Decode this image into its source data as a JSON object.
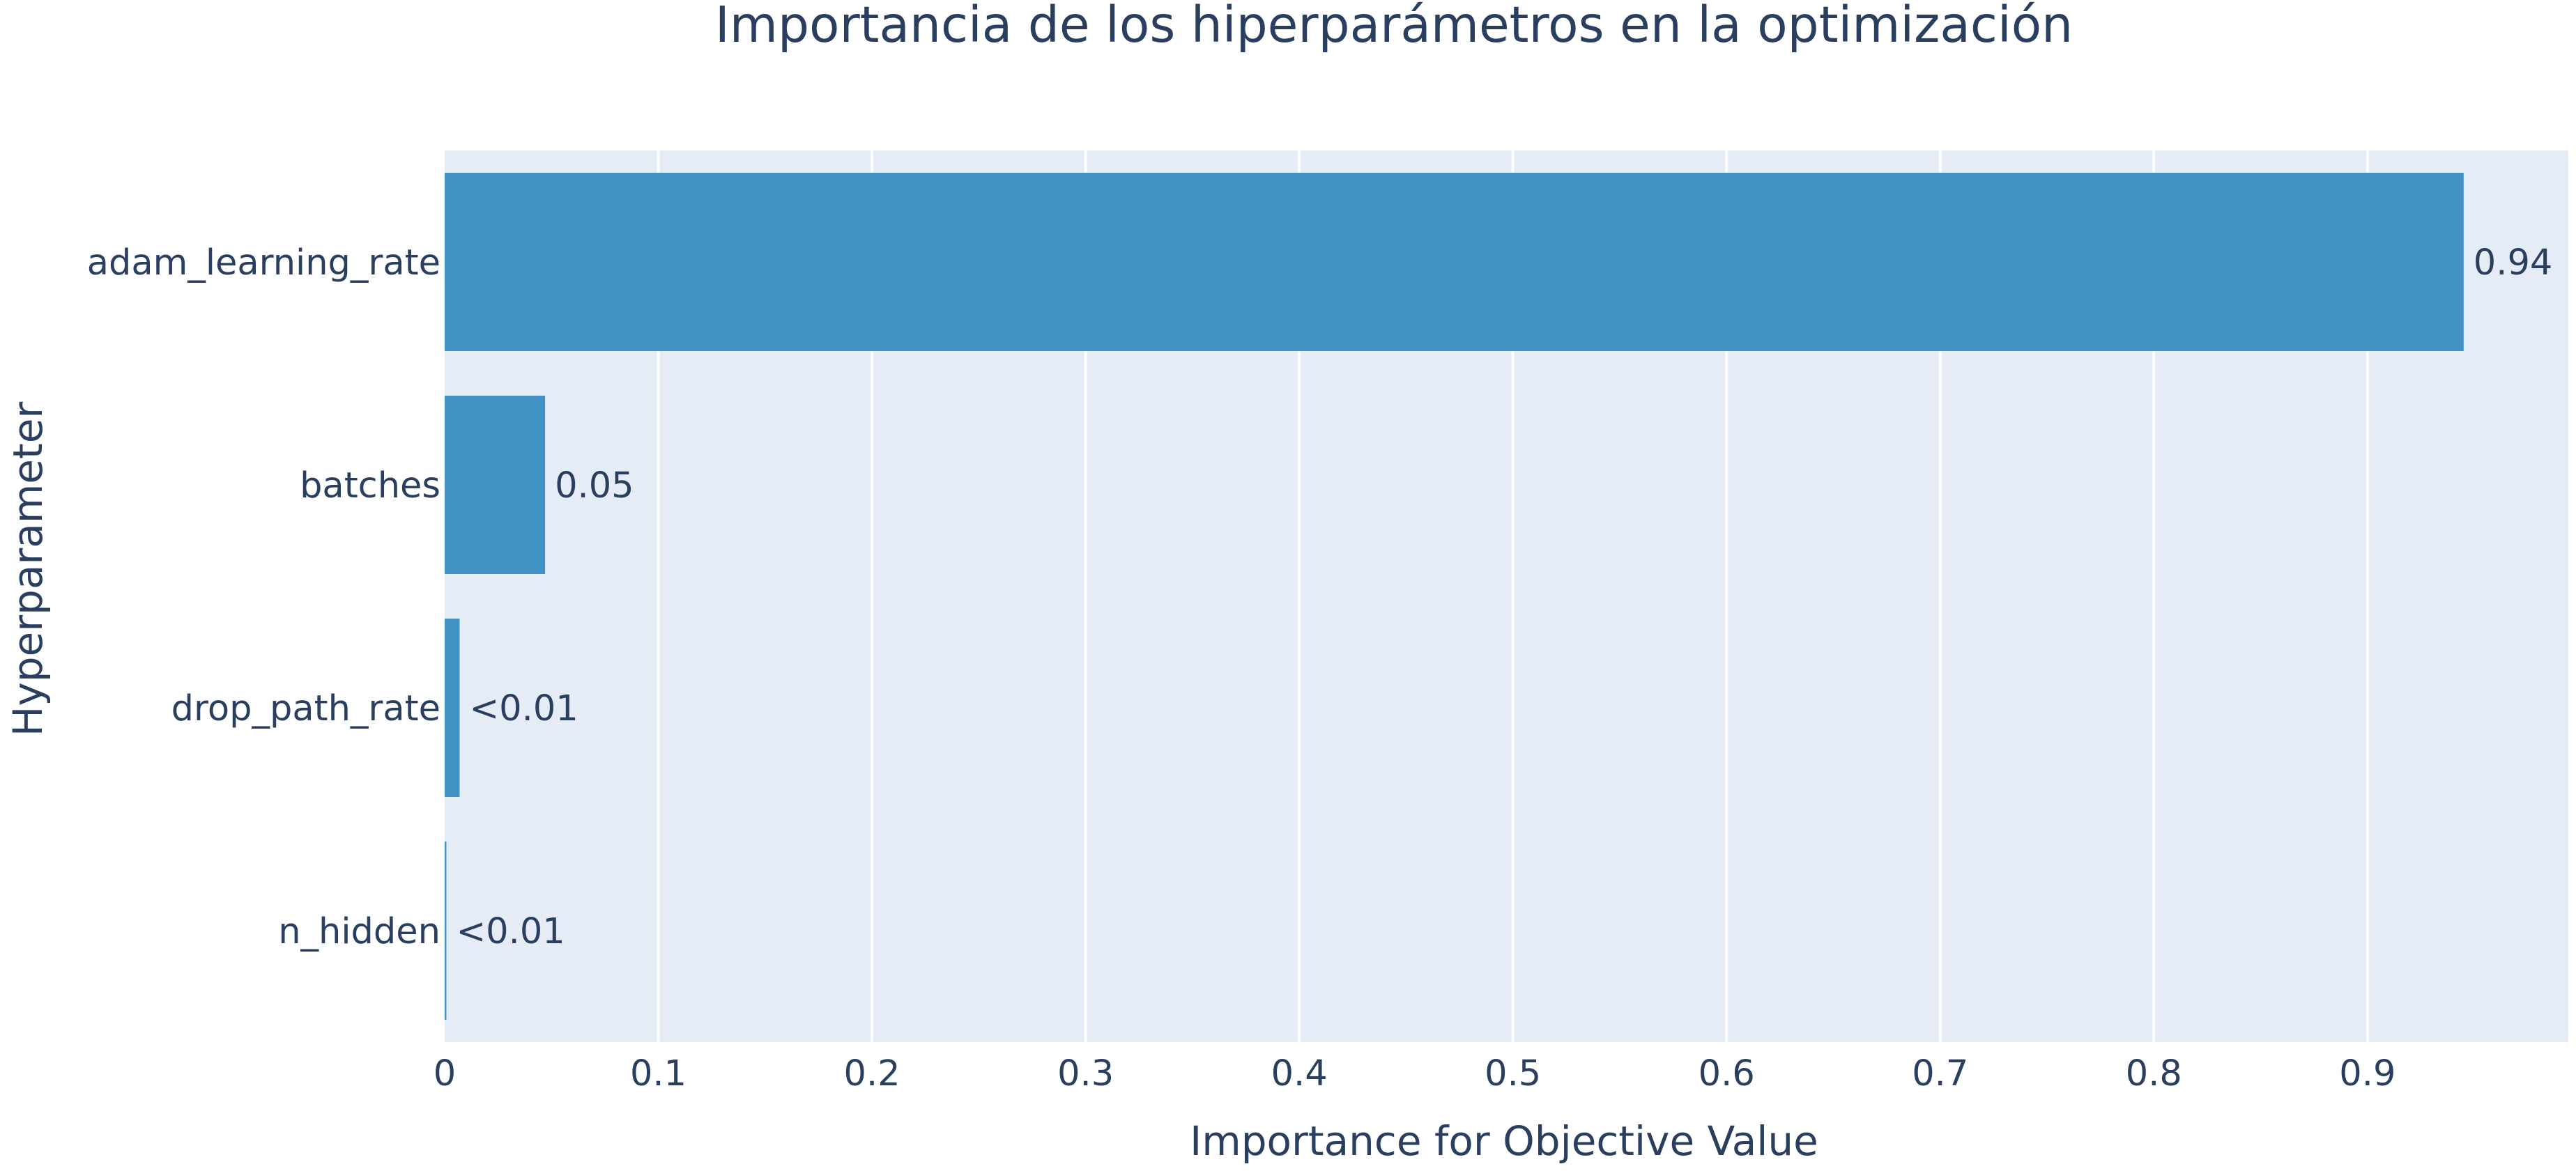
{
  "chart_data": {
    "type": "bar",
    "orientation": "horizontal",
    "title": "Importancia de los hiperparámetros en la optimización",
    "xlabel": "Importance for Objective Value",
    "ylabel": "Hyperparameter",
    "categories": [
      "adam_learning_rate",
      "batches",
      "drop_path_rate",
      "n_hidden"
    ],
    "values": [
      0.945,
      0.047,
      0.007,
      0.0008
    ],
    "data_labels": [
      "0.94",
      "0.05",
      "<0.01",
      "<0.01"
    ],
    "xlim": [
      0,
      0.994
    ],
    "xticks": [
      0,
      0.1,
      0.2,
      0.3,
      0.4,
      0.5,
      0.6,
      0.7,
      0.8,
      0.9
    ],
    "xtick_labels": [
      "0",
      "0.1",
      "0.2",
      "0.3",
      "0.4",
      "0.5",
      "0.6",
      "0.7",
      "0.8",
      "0.9"
    ],
    "grid": true,
    "legend": "none",
    "colors": {
      "bar": "#4292c6",
      "plot_background": "#e5ecf6",
      "gridline": "#ffffff",
      "text": "#2a3f5f"
    }
  }
}
